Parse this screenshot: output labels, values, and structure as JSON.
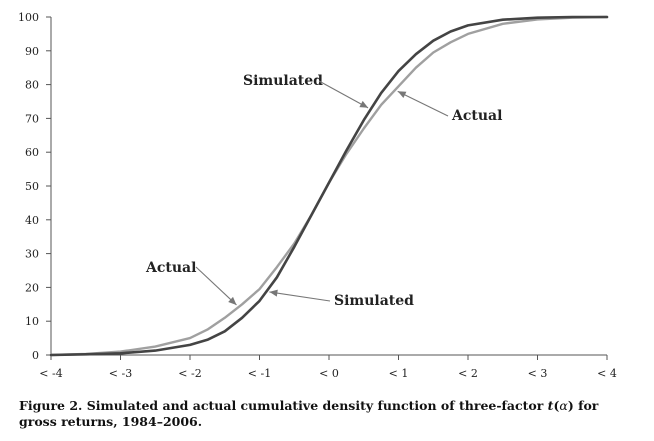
{
  "chart_data": {
    "type": "line",
    "title": "",
    "xlabel": "",
    "ylabel": "",
    "ylim": [
      0,
      100
    ],
    "x_tick_labels": [
      "< -4",
      "< -3",
      "< -2",
      "< -1",
      "< 0",
      "< 1",
      "< 2",
      "< 3",
      "< 4"
    ],
    "y_ticks": [
      0,
      10,
      20,
      30,
      40,
      50,
      60,
      70,
      80,
      90,
      100
    ],
    "grid": false,
    "series": [
      {
        "name": "Simulated",
        "color": "#444444",
        "x": [
          -4,
          -3.5,
          -3,
          -2.5,
          -2,
          -1.75,
          -1.5,
          -1.25,
          -1,
          -0.75,
          -0.5,
          -0.25,
          0,
          0.25,
          0.5,
          0.75,
          1,
          1.25,
          1.5,
          1.75,
          2,
          2.5,
          3,
          3.5,
          4
        ],
        "y": [
          0,
          0.2,
          0.5,
          1.3,
          3,
          4.5,
          7,
          11,
          16,
          23,
          32,
          41.5,
          51,
          60.5,
          69.5,
          77.5,
          84,
          89,
          93,
          95.7,
          97.5,
          99.2,
          99.8,
          100,
          100
        ]
      },
      {
        "name": "Actual",
        "color": "#a0a0a0",
        "x": [
          -4,
          -3.5,
          -3,
          -2.5,
          -2,
          -1.75,
          -1.5,
          -1.25,
          -1,
          -0.75,
          -0.5,
          -0.25,
          0,
          0.25,
          0.5,
          0.75,
          1,
          1.25,
          1.5,
          1.75,
          2,
          2.5,
          3,
          3.5,
          4
        ],
        "y": [
          0,
          0.3,
          1,
          2.5,
          5,
          7.5,
          11,
          15,
          19.5,
          26,
          33,
          41.5,
          51,
          59.5,
          67,
          74,
          79.5,
          85,
          89.5,
          92.5,
          95,
          98,
          99.3,
          99.8,
          100
        ]
      }
    ],
    "annotations": [
      {
        "text": "Simulated",
        "target_series": "Simulated",
        "target_x": 0.6
      },
      {
        "text": "Actual",
        "target_series": "Actual",
        "target_x": 0.95
      },
      {
        "text": "Actual",
        "target_series": "Actual",
        "target_x": -1.3
      },
      {
        "text": "Simulated",
        "target_series": "Simulated",
        "target_x": -0.9
      }
    ]
  },
  "caption": {
    "line1_a": "Figure 2.  Simulated and actual cumulative density function of three-factor ",
    "line1_t": "t",
    "line1_b": "(",
    "line1_alpha": "α",
    "line1_c": ") for",
    "line2": "gross returns, 1984–2006."
  }
}
